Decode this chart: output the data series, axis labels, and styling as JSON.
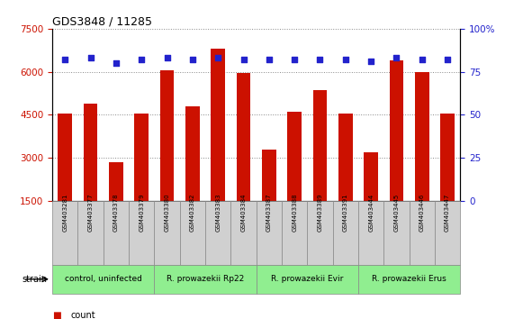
{
  "title": "GDS3848 / 11285",
  "samples": [
    "GSM403281",
    "GSM403377",
    "GSM403378",
    "GSM403379",
    "GSM403380",
    "GSM403382",
    "GSM403383",
    "GSM403384",
    "GSM403387",
    "GSM403388",
    "GSM403389",
    "GSM403391",
    "GSM403444",
    "GSM403445",
    "GSM403446",
    "GSM403447"
  ],
  "counts": [
    4550,
    4900,
    2850,
    4550,
    6050,
    4800,
    6800,
    5950,
    3300,
    4600,
    5350,
    4550,
    3200,
    6400,
    6000,
    4550
  ],
  "percentiles": [
    82,
    83,
    80,
    82,
    83,
    82,
    83,
    82,
    82,
    82,
    82,
    82,
    81,
    83,
    82,
    82
  ],
  "groups": [
    {
      "label": "control, uninfected",
      "start": 0,
      "end": 4,
      "color": "#90EE90"
    },
    {
      "label": "R. prowazekii Rp22",
      "start": 4,
      "end": 8,
      "color": "#90EE90"
    },
    {
      "label": "R. prowazekii Evir",
      "start": 8,
      "end": 12,
      "color": "#90EE90"
    },
    {
      "label": "R. prowazekii Erus",
      "start": 12,
      "end": 16,
      "color": "#90EE90"
    }
  ],
  "ylim_left": [
    1500,
    7500
  ],
  "yticks_left": [
    1500,
    3000,
    4500,
    6000,
    7500
  ],
  "ylim_right": [
    0,
    100
  ],
  "yticks_right": [
    0,
    25,
    50,
    75,
    100
  ],
  "bar_color": "#CC1100",
  "dot_color": "#2222CC",
  "grid_color": "#888888",
  "bg_color": "#FFFFFF",
  "plot_bg": "#FFFFFF",
  "tick_color_left": "#CC1100",
  "tick_color_right": "#2222CC",
  "sample_cell_color": "#D0D0D0",
  "sample_cell_edge": "#888888",
  "strain_label": "strain"
}
